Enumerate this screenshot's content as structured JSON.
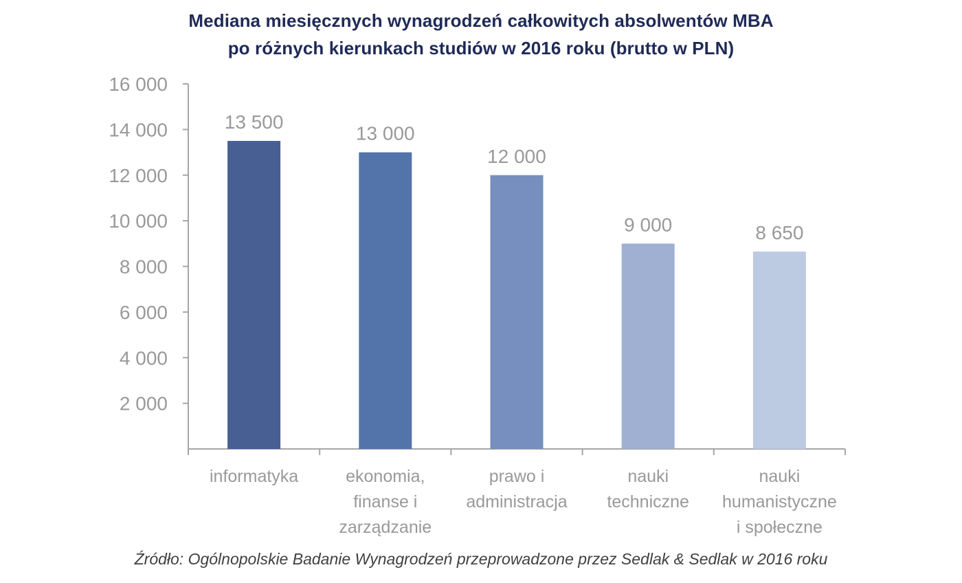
{
  "chart_data": {
    "type": "bar",
    "title": [
      "Mediana miesięcznych wynagrodzeń całkowitych absolwentów MBA",
      "po różnych kierunkach studiów w 2016 roku (brutto w PLN)"
    ],
    "categories": [
      [
        "informatyka"
      ],
      [
        "ekonomia,",
        "finanse i",
        "zarządzanie"
      ],
      [
        "prawo i",
        "administracja"
      ],
      [
        "nauki",
        "techniczne"
      ],
      [
        "nauki",
        "humanistyczne",
        "i społeczne"
      ]
    ],
    "values": [
      13500,
      13000,
      12000,
      9000,
      8650
    ],
    "data_labels": [
      "13 500",
      "13 000",
      "12 000",
      "9 000",
      "8 650"
    ],
    "ylim": [
      0,
      16000
    ],
    "yticks": [
      2000,
      4000,
      6000,
      8000,
      10000,
      12000,
      14000,
      16000
    ],
    "ytick_labels": [
      "2 000",
      "4 000",
      "6 000",
      "8 000",
      "10 000",
      "12 000",
      "14 000",
      "16 000"
    ],
    "bar_colors": [
      "#485f94",
      "#5374ab",
      "#768fbe",
      "#9fb0d3",
      "#bccbe1"
    ],
    "xlabel": "",
    "ylabel": "",
    "grid": false,
    "legend": "none"
  },
  "source": "Źródło: Ogólnopolskie Badanie Wynagrodzeń przeprowadzone przez Sedlak & Sedlak w 2016 roku",
  "colors": {
    "title": "#1f2a56",
    "axis_text": "#999999",
    "axis_line": "#a6a6a6",
    "source_text": "#404040"
  }
}
